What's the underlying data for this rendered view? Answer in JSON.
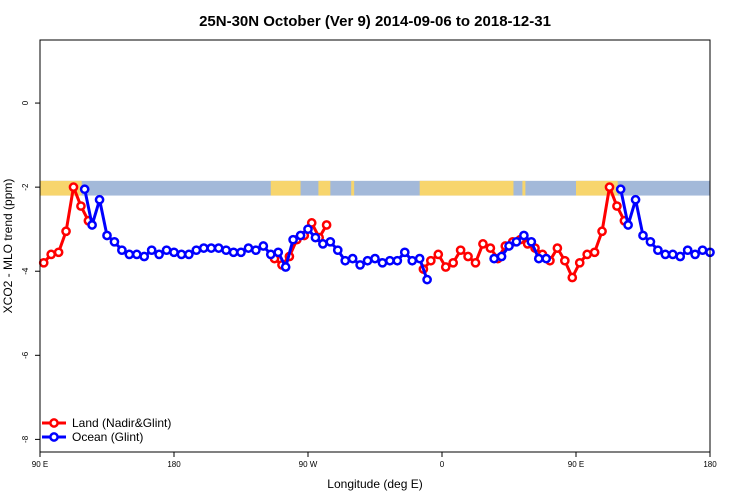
{
  "chart_data": {
    "type": "line",
    "title": "25N-30N October (Ver 9)   2014-09-06 to 2018-12-31",
    "xlabel": "Longitude (deg E)",
    "ylabel": "XCO2 - MLO trend (ppm)",
    "xlim": [
      90,
      540
    ],
    "ylim": [
      -8.3,
      1.5
    ],
    "x_ticks": [
      {
        "value": 90,
        "label": "90 E"
      },
      {
        "value": 180,
        "label": "180"
      },
      {
        "value": 270,
        "label": "90 W"
      },
      {
        "value": 360,
        "label": "0"
      },
      {
        "value": 450,
        "label": "90 E"
      },
      {
        "value": 540,
        "label": "180"
      }
    ],
    "y_ticks": [
      {
        "value": 0,
        "label": "0"
      },
      {
        "value": -2,
        "label": "-2"
      },
      {
        "value": -4,
        "label": "-4"
      },
      {
        "value": -6,
        "label": "-6"
      },
      {
        "value": -8,
        "label": "-8"
      }
    ],
    "land_mask": {
      "y_range": [
        -2.2,
        -1.85
      ],
      "ocean_color": "#a3b9d9",
      "land_color": "#f7d56d",
      "land_segments": [
        [
          90,
          118
        ],
        [
          245,
          265
        ],
        [
          277,
          285
        ],
        [
          299,
          301
        ],
        [
          345,
          408
        ],
        [
          414,
          416
        ],
        [
          450,
          478
        ]
      ]
    },
    "legend": {
      "position": "bottom-left",
      "entries": [
        {
          "label": "Land (Nadir&Glint)",
          "color": "#ff0000"
        },
        {
          "label": "Ocean (Glint)",
          "color": "#0000ff"
        }
      ]
    },
    "series": [
      {
        "name": "Land (Nadir&Glint)",
        "color": "#ff0000",
        "segments": [
          {
            "x": [
              92.5,
              97.5,
              102.5,
              107.5,
              112.5,
              117.5,
              122.5
            ],
            "y": [
              -3.8,
              -3.6,
              -3.55,
              -3.05,
              -2.0,
              -2.45,
              -2.8
            ]
          },
          {
            "x": [
              247.5,
              252.5,
              257.5,
              262.5,
              267.5,
              272.5,
              277.5,
              282.5
            ],
            "y": [
              -3.7,
              -3.85,
              -3.65,
              -3.25,
              -3.15,
              -2.85,
              -3.2,
              -2.9
            ]
          },
          {
            "x": [
              347.5,
              352.5,
              357.5,
              362.5,
              367.5,
              372.5,
              377.5,
              382.5,
              387.5,
              392.5,
              397.5,
              402.5,
              407.5
            ],
            "y": [
              -3.95,
              -3.75,
              -3.6,
              -3.9,
              -3.8,
              -3.5,
              -3.65,
              -3.8,
              -3.35,
              -3.45,
              -3.7,
              -3.4,
              -3.3
            ]
          },
          {
            "x": [
              412.5,
              417.5,
              422.5,
              427.5,
              432.5,
              437.5,
              442.5,
              447.5,
              452.5,
              457.5,
              462.5,
              467.5,
              472.5,
              477.5,
              482.5
            ],
            "y": [
              -3.25,
              -3.35,
              -3.45,
              -3.6,
              -3.75,
              -3.45,
              -3.75,
              -4.15,
              -3.8,
              -3.6,
              -3.55,
              -3.05,
              -2.0,
              -2.45,
              -2.8
            ]
          }
        ]
      },
      {
        "name": "Ocean (Glint)",
        "color": "#0000ff",
        "segments": [
          {
            "x": [
              120,
              125,
              130,
              135,
              140,
              145,
              150,
              155,
              160,
              165,
              170,
              175,
              180,
              185,
              190,
              195,
              200,
              205,
              210,
              215,
              220,
              225,
              230,
              235,
              240,
              245,
              250,
              255,
              260,
              265,
              270,
              275,
              280,
              285,
              290,
              295,
              300,
              305,
              310,
              315,
              320,
              325,
              330,
              335,
              340,
              345,
              350
            ],
            "y": [
              -2.05,
              -2.9,
              -2.3,
              -3.15,
              -3.3,
              -3.5,
              -3.6,
              -3.6,
              -3.65,
              -3.5,
              -3.6,
              -3.5,
              -3.55,
              -3.6,
              -3.6,
              -3.5,
              -3.45,
              -3.45,
              -3.45,
              -3.5,
              -3.55,
              -3.55,
              -3.45,
              -3.5,
              -3.4,
              -3.6,
              -3.55,
              -3.9,
              -3.25,
              -3.15,
              -3.0,
              -3.2,
              -3.35,
              -3.3,
              -3.5,
              -3.75,
              -3.7,
              -3.85,
              -3.75,
              -3.7,
              -3.8,
              -3.75,
              -3.75,
              -3.55,
              -3.75,
              -3.7,
              -4.2
            ]
          },
          {
            "x": [
              395,
              400,
              405,
              410,
              415,
              420,
              425,
              430
            ],
            "y": [
              -3.7,
              -3.65,
              -3.4,
              -3.3,
              -3.15,
              -3.3,
              -3.7,
              -3.7
            ]
          },
          {
            "x": [
              480,
              485,
              490,
              495,
              500,
              505,
              510,
              515,
              520,
              525,
              530,
              535,
              540
            ],
            "y": [
              -2.05,
              -2.9,
              -2.3,
              -3.15,
              -3.3,
              -3.5,
              -3.6,
              -3.6,
              -3.65,
              -3.5,
              -3.6,
              -3.5,
              -3.55
            ]
          }
        ]
      }
    ]
  }
}
